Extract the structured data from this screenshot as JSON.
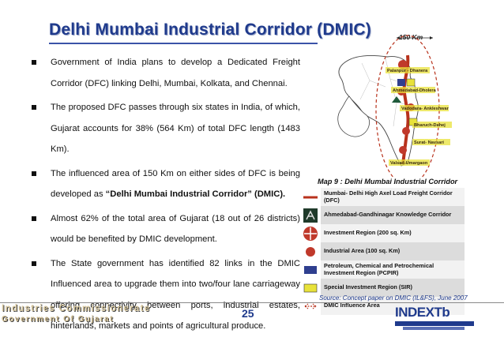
{
  "slide": {
    "title": "Delhi Mumbai Industrial Corridor (DMIC)",
    "page_number": "25"
  },
  "bullets": [
    {
      "text": "Government of India plans to develop a Dedicated Freight Corridor (DFC) linking Delhi, Mumbai, Kolkata, and Chennai."
    },
    {
      "text": "The proposed DFC passes through six states in India, of which, Gujarat  accounts for 38% (564 Km) of total DFC length (1483 Km)."
    },
    {
      "text_before": "The influenced area of 150 Km on either sides of DFC is being developed as ",
      "text_bold": "“Delhi Mumbai Industrial Corridor” (DMIC).",
      "text_after": ""
    },
    {
      "text": " Almost 62% of the total area of Gujarat (18 out of 26 districts) would be benefited by DMIC development."
    },
    {
      "text": "The State government has identified 82 links in the DMIC Influenced area to upgrade them into two/four lane carriageway offering connectivity between ports, industrial estates, hinterlands, markets and points of agricultural produce."
    }
  ],
  "map": {
    "scale_label": "150 Km",
    "caption": "Map 9 : Delhi Mumbai Industrial Corridor",
    "places": [
      {
        "label": "Palanpur - Dhanera"
      },
      {
        "label": "Ahmedabad-Dholera"
      },
      {
        "label": "Vadodara- Ankleshwar"
      },
      {
        "label": "Bharuch-Dahej"
      },
      {
        "label": "Surat- Navsari"
      },
      {
        "label": "Valsad-Umargaon"
      }
    ],
    "colors": {
      "dfc_line": "#b8321c",
      "influence_outline": "#b8321c",
      "ir_marker": "#c0392b",
      "sir_marker": "#e8e23a",
      "pcpir_marker": "#2f3f8f",
      "knowledge_marker": "#1f5a3a"
    }
  },
  "legend": [
    {
      "icon": "dfc-line-icon",
      "label": "Mumbai- Delhi High Axel Load Freight Corridor (DFC)"
    },
    {
      "icon": "knowledge-corridor-icon",
      "label": "Ahmedabad-Gandhinagar Knowledge Corridor"
    },
    {
      "icon": "investment-region-icon",
      "label": "Investment Region (200 sq. Km)"
    },
    {
      "icon": "industrial-area-icon",
      "label": "Industrial Area (100 sq. Km)"
    },
    {
      "icon": "pcpir-icon",
      "label": "Petroleum, Chemical and Petrochemical Investment Region (PCPIR)"
    },
    {
      "icon": "sir-icon",
      "label": "Special Investment Region (SIR)"
    },
    {
      "icon": "dmic-influence-icon",
      "label": "DMIC Influence Area"
    }
  ],
  "source": "Source: Concept paper on DMIC (IL&FS), June 2007",
  "footer": {
    "org_line1": "Industries Commissionerate",
    "org_line2": "Government Of Gujarat",
    "logo_text": "INDEXTb"
  }
}
